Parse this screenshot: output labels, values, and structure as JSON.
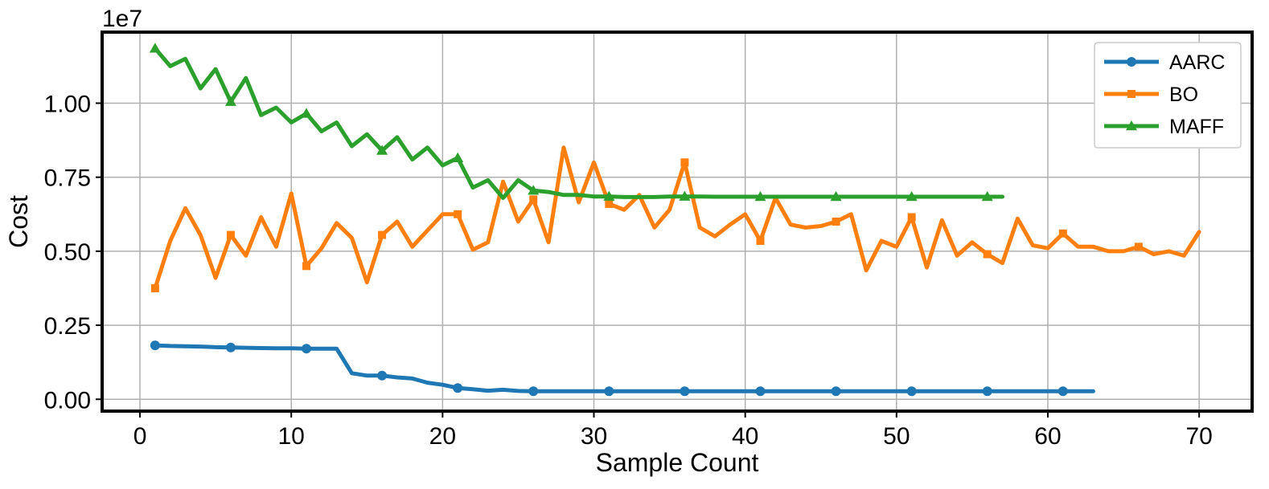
{
  "chart_data": {
    "type": "line",
    "xlabel": "Sample Count",
    "ylabel": "Cost",
    "y_exponent_label": "1e7",
    "xlim": [
      -2.5,
      73.5
    ],
    "ylim": [
      -0.04,
      1.24
    ],
    "x_ticks": [
      0,
      10,
      20,
      30,
      40,
      50,
      60,
      70
    ],
    "x_tick_labels": [
      "0",
      "10",
      "20",
      "30",
      "40",
      "50",
      "60",
      "70"
    ],
    "y_ticks": [
      0,
      0.25,
      0.5,
      0.75,
      1.0
    ],
    "y_tick_labels": [
      "0.00",
      "0.25",
      "0.50",
      "0.75",
      "1.00"
    ],
    "grid": true,
    "legend_position": "top-right",
    "series": [
      {
        "name": "AARC",
        "color": "#1f77b4",
        "marker": "circle",
        "marker_every": 5,
        "x": [
          1,
          2,
          3,
          4,
          5,
          6,
          7,
          8,
          9,
          10,
          11,
          12,
          13,
          14,
          15,
          16,
          17,
          18,
          19,
          20,
          21,
          22,
          23,
          24,
          25,
          26,
          27,
          28,
          29,
          30,
          31,
          32,
          33,
          34,
          35,
          36,
          37,
          38,
          39,
          40,
          41,
          42,
          43,
          44,
          45,
          46,
          47,
          48,
          49,
          50,
          51,
          52,
          53,
          54,
          55,
          56,
          57,
          58,
          59,
          60,
          61,
          62,
          63
        ],
        "y": [
          0.182,
          0.18,
          0.179,
          0.178,
          0.176,
          0.175,
          0.174,
          0.173,
          0.172,
          0.172,
          0.171,
          0.171,
          0.171,
          0.088,
          0.08,
          0.08,
          0.074,
          0.07,
          0.056,
          0.049,
          0.038,
          0.034,
          0.029,
          0.032,
          0.028,
          0.027,
          0.027,
          0.027,
          0.027,
          0.027,
          0.027,
          0.027,
          0.027,
          0.027,
          0.027,
          0.027,
          0.027,
          0.027,
          0.027,
          0.027,
          0.027,
          0.027,
          0.027,
          0.027,
          0.027,
          0.027,
          0.027,
          0.027,
          0.027,
          0.027,
          0.027,
          0.027,
          0.027,
          0.027,
          0.027,
          0.027,
          0.027,
          0.027,
          0.027,
          0.027,
          0.027,
          0.027,
          0.027
        ]
      },
      {
        "name": "BO",
        "color": "#ff7f0e",
        "marker": "square",
        "marker_every": 5,
        "x": [
          1,
          2,
          3,
          4,
          5,
          6,
          7,
          8,
          9,
          10,
          11,
          12,
          13,
          14,
          15,
          16,
          17,
          18,
          19,
          20,
          21,
          22,
          23,
          24,
          25,
          26,
          27,
          28,
          29,
          30,
          31,
          32,
          33,
          34,
          35,
          36,
          37,
          38,
          39,
          40,
          41,
          42,
          43,
          44,
          45,
          46,
          47,
          48,
          49,
          50,
          51,
          52,
          53,
          54,
          55,
          56,
          57,
          58,
          59,
          60,
          61,
          62,
          63,
          64,
          65,
          66,
          67,
          68,
          69,
          70
        ],
        "y": [
          0.375,
          0.535,
          0.645,
          0.555,
          0.41,
          0.555,
          0.485,
          0.615,
          0.515,
          0.695,
          0.45,
          0.51,
          0.595,
          0.545,
          0.395,
          0.555,
          0.6,
          0.515,
          0.57,
          0.625,
          0.625,
          0.505,
          0.53,
          0.735,
          0.6,
          0.675,
          0.53,
          0.85,
          0.665,
          0.8,
          0.66,
          0.64,
          0.69,
          0.58,
          0.64,
          0.8,
          0.58,
          0.55,
          0.59,
          0.625,
          0.535,
          0.68,
          0.59,
          0.58,
          0.585,
          0.6,
          0.625,
          0.435,
          0.535,
          0.515,
          0.615,
          0.445,
          0.605,
          0.485,
          0.53,
          0.49,
          0.46,
          0.61,
          0.52,
          0.51,
          0.56,
          0.515,
          0.515,
          0.5,
          0.5,
          0.515,
          0.49,
          0.5,
          0.485,
          0.565
        ]
      },
      {
        "name": "MAFF",
        "color": "#2ca02c",
        "marker": "triangle",
        "marker_every": 5,
        "x": [
          1,
          2,
          3,
          4,
          5,
          6,
          7,
          8,
          9,
          10,
          11,
          12,
          13,
          14,
          15,
          16,
          17,
          18,
          19,
          20,
          21,
          22,
          23,
          24,
          25,
          26,
          27,
          28,
          29,
          30,
          31,
          32,
          33,
          34,
          35,
          36,
          37,
          38,
          39,
          40,
          41,
          42,
          43,
          44,
          45,
          46,
          47,
          48,
          49,
          50,
          51,
          52,
          53,
          54,
          55,
          56,
          57
        ],
        "y": [
          1.185,
          1.125,
          1.15,
          1.05,
          1.115,
          1.005,
          1.085,
          0.96,
          0.985,
          0.935,
          0.965,
          0.905,
          0.935,
          0.855,
          0.895,
          0.84,
          0.885,
          0.81,
          0.85,
          0.79,
          0.815,
          0.715,
          0.74,
          0.68,
          0.74,
          0.705,
          0.7,
          0.69,
          0.69,
          0.685,
          0.685,
          0.683,
          0.683,
          0.683,
          0.685,
          0.685,
          0.685,
          0.684,
          0.684,
          0.684,
          0.684,
          0.684,
          0.684,
          0.684,
          0.684,
          0.684,
          0.684,
          0.684,
          0.684,
          0.684,
          0.684,
          0.684,
          0.684,
          0.684,
          0.684,
          0.684,
          0.684
        ]
      }
    ]
  }
}
